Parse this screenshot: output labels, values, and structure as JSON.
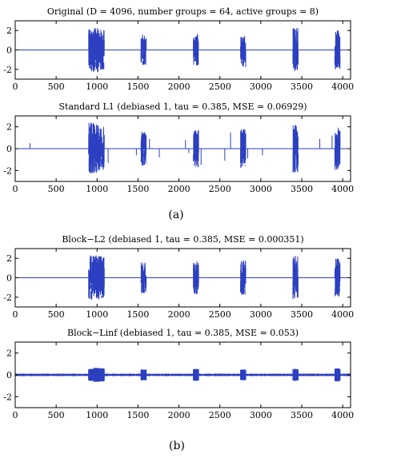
{
  "figure": {
    "captions": [
      "(a)",
      "(b)"
    ]
  },
  "colors": {
    "signal": "#2b3fc0",
    "axes": "#000000"
  },
  "chart_data": [
    {
      "type": "line",
      "title": "Original (D = 4096, number groups = 64, active groups = 8)",
      "xlim": [
        0,
        4096
      ],
      "ylim": [
        -3,
        3
      ],
      "xticks": [
        0,
        500,
        1000,
        1500,
        2000,
        2500,
        3000,
        3500,
        4000
      ],
      "yticks": [
        -2,
        0,
        2
      ],
      "bursts": [
        {
          "start": 896,
          "end": 960,
          "amp": 2.3
        },
        {
          "start": 960,
          "end": 1024,
          "amp": 2.3
        },
        {
          "start": 1024,
          "end": 1088,
          "amp": 2.2
        },
        {
          "start": 1536,
          "end": 1600,
          "amp": 1.6
        },
        {
          "start": 2176,
          "end": 2240,
          "amp": 1.7
        },
        {
          "start": 2752,
          "end": 2816,
          "amp": 1.8
        },
        {
          "start": 3392,
          "end": 3456,
          "amp": 2.3
        },
        {
          "start": 3904,
          "end": 3968,
          "amp": 2.0
        }
      ],
      "spikes": []
    },
    {
      "type": "line",
      "title": "Standard L1 (debiased 1, tau = 0.385, MSE = 0.06929)",
      "xlim": [
        0,
        4096
      ],
      "ylim": [
        -3,
        3
      ],
      "xticks": [
        0,
        500,
        1000,
        1500,
        2000,
        2500,
        3000,
        3500,
        4000
      ],
      "yticks": [
        -2,
        0,
        2
      ],
      "bursts": [
        {
          "start": 896,
          "end": 960,
          "amp": 2.4
        },
        {
          "start": 960,
          "end": 1024,
          "amp": 2.3
        },
        {
          "start": 1024,
          "end": 1088,
          "amp": 2.0
        },
        {
          "start": 1536,
          "end": 1600,
          "amp": 1.6
        },
        {
          "start": 2176,
          "end": 2240,
          "amp": 1.7
        },
        {
          "start": 2752,
          "end": 2816,
          "amp": 1.8
        },
        {
          "start": 3392,
          "end": 3456,
          "amp": 2.2
        },
        {
          "start": 3904,
          "end": 3968,
          "amp": 2.0
        }
      ],
      "spikes": [
        {
          "x": 180,
          "y": 0.5
        },
        {
          "x": 1135,
          "y": -1.3
        },
        {
          "x": 1480,
          "y": -0.6
        },
        {
          "x": 1640,
          "y": 0.9
        },
        {
          "x": 1760,
          "y": -0.8
        },
        {
          "x": 2080,
          "y": 0.8
        },
        {
          "x": 2120,
          "y": -0.4
        },
        {
          "x": 2270,
          "y": -1.5
        },
        {
          "x": 2560,
          "y": -1.1
        },
        {
          "x": 2630,
          "y": 1.5
        },
        {
          "x": 2840,
          "y": -0.9
        },
        {
          "x": 3020,
          "y": -0.6
        },
        {
          "x": 3440,
          "y": 0.7
        },
        {
          "x": 3720,
          "y": 0.9
        },
        {
          "x": 3870,
          "y": 1.2
        }
      ]
    },
    {
      "type": "line",
      "title": "Block−L2 (debiased 1, tau = 0.385, MSE = 0.000351)",
      "xlim": [
        0,
        4096
      ],
      "ylim": [
        -3,
        3
      ],
      "xticks": [
        0,
        500,
        1000,
        1500,
        2000,
        2500,
        3000,
        3500,
        4000
      ],
      "yticks": [
        -2,
        0,
        2
      ],
      "bursts": [
        {
          "start": 896,
          "end": 960,
          "amp": 2.3
        },
        {
          "start": 960,
          "end": 1024,
          "amp": 2.3
        },
        {
          "start": 1024,
          "end": 1088,
          "amp": 2.2
        },
        {
          "start": 1536,
          "end": 1600,
          "amp": 1.6
        },
        {
          "start": 2176,
          "end": 2240,
          "amp": 1.7
        },
        {
          "start": 2752,
          "end": 2816,
          "amp": 1.8
        },
        {
          "start": 3392,
          "end": 3456,
          "amp": 2.3
        },
        {
          "start": 3904,
          "end": 3968,
          "amp": 2.0
        }
      ],
      "spikes": []
    },
    {
      "type": "line",
      "title": "Block−Linf (debiased 1, tau = 0.385, MSE = 0.053)",
      "xlim": [
        0,
        4096
      ],
      "ylim": [
        -3,
        3
      ],
      "xticks": [
        0,
        500,
        1000,
        1500,
        2000,
        2500,
        3000,
        3500,
        4000
      ],
      "yticks": [
        -2,
        0,
        2
      ],
      "noise_floor": 0.12,
      "bursts": [
        {
          "start": 896,
          "end": 960,
          "amp": 0.55,
          "flat": true
        },
        {
          "start": 960,
          "end": 1024,
          "amp": 0.65,
          "flat": true
        },
        {
          "start": 1024,
          "end": 1088,
          "amp": 0.6,
          "flat": true
        },
        {
          "start": 1536,
          "end": 1600,
          "amp": 0.5,
          "flat": true
        },
        {
          "start": 2176,
          "end": 2240,
          "amp": 0.55,
          "flat": true
        },
        {
          "start": 2752,
          "end": 2816,
          "amp": 0.5,
          "flat": true
        },
        {
          "start": 3392,
          "end": 3456,
          "amp": 0.55,
          "flat": true
        },
        {
          "start": 3904,
          "end": 3968,
          "amp": 0.6,
          "flat": true
        }
      ],
      "spikes": []
    }
  ]
}
